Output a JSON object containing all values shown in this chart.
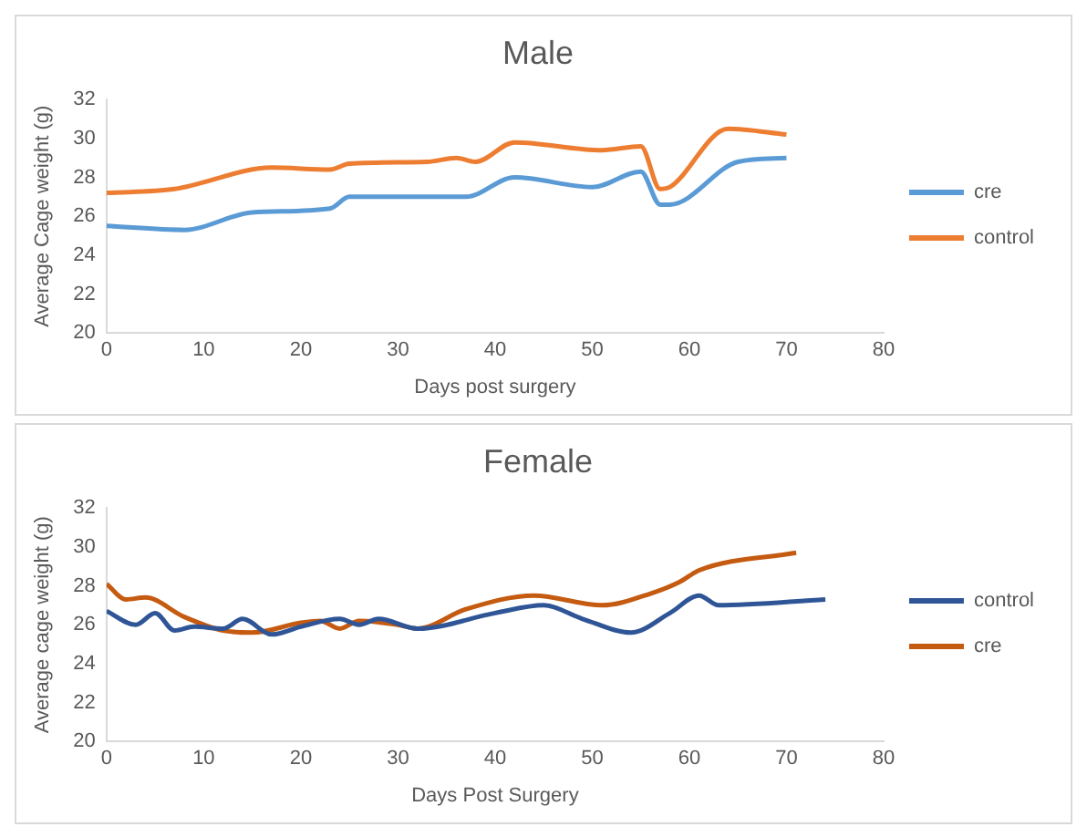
{
  "chart_data": [
    {
      "type": "line",
      "title": "Male",
      "xlabel": "Days post surgery",
      "ylabel": "Average Cage weight (g)",
      "xlim": [
        0,
        80
      ],
      "xticks": [
        0,
        10,
        20,
        30,
        40,
        50,
        60,
        70,
        80
      ],
      "ylim": [
        20,
        32
      ],
      "yticks": [
        20,
        22,
        24,
        26,
        28,
        30,
        32
      ],
      "legend": "right",
      "grid": false,
      "marker": "none",
      "line_style": "solid",
      "series": [
        {
          "name": "cre",
          "color": "#5b9bd5",
          "x": [
            0,
            8,
            15,
            23,
            25,
            37,
            42,
            50,
            55,
            57,
            58,
            65,
            70
          ],
          "values": [
            25.5,
            25.3,
            26.2,
            26.4,
            27.0,
            27.0,
            28.0,
            27.5,
            28.3,
            26.6,
            26.6,
            28.8,
            29.0
          ]
        },
        {
          "name": "control",
          "color": "#ed7d31",
          "x": [
            0,
            7,
            17,
            23,
            25,
            33,
            36,
            38,
            42,
            51,
            55,
            57,
            58,
            64,
            70
          ],
          "values": [
            27.2,
            27.4,
            28.5,
            28.4,
            28.7,
            28.8,
            29.0,
            28.8,
            29.8,
            29.4,
            29.6,
            27.4,
            27.5,
            30.5,
            30.2
          ]
        }
      ]
    },
    {
      "type": "line",
      "title": "Female",
      "xlabel": "Days Post Surgery",
      "ylabel": "Average cage weight (g)",
      "xlim": [
        0,
        80
      ],
      "xticks": [
        0,
        10,
        20,
        30,
        40,
        50,
        60,
        70,
        80
      ],
      "ylim": [
        20,
        32
      ],
      "yticks": [
        20,
        22,
        24,
        26,
        28,
        30,
        32
      ],
      "legend": "right",
      "grid": false,
      "marker": "none",
      "line_style": "solid",
      "series": [
        {
          "name": "control",
          "color": "#2f5597",
          "x": [
            0,
            3,
            5,
            7,
            9,
            12,
            14,
            17,
            20,
            24,
            26,
            28,
            32,
            40,
            45,
            49,
            54,
            58,
            61,
            63,
            74
          ],
          "values": [
            26.7,
            26.0,
            26.6,
            25.7,
            25.9,
            25.8,
            26.3,
            25.5,
            25.9,
            26.3,
            26.0,
            26.3,
            25.8,
            26.6,
            27.0,
            26.3,
            25.6,
            26.6,
            27.5,
            27.0,
            27.3
          ]
        },
        {
          "name": "cre",
          "color": "#c55a11",
          "x": [
            0,
            2,
            4,
            8,
            12,
            15,
            20,
            22,
            24,
            26,
            30,
            32,
            37,
            44,
            51,
            56,
            59,
            61,
            71
          ],
          "values": [
            28.1,
            27.3,
            27.4,
            26.4,
            25.7,
            25.6,
            26.1,
            26.2,
            25.8,
            26.2,
            26.0,
            25.8,
            26.8,
            27.5,
            27.0,
            27.6,
            28.2,
            28.8,
            29.7
          ]
        }
      ]
    }
  ]
}
